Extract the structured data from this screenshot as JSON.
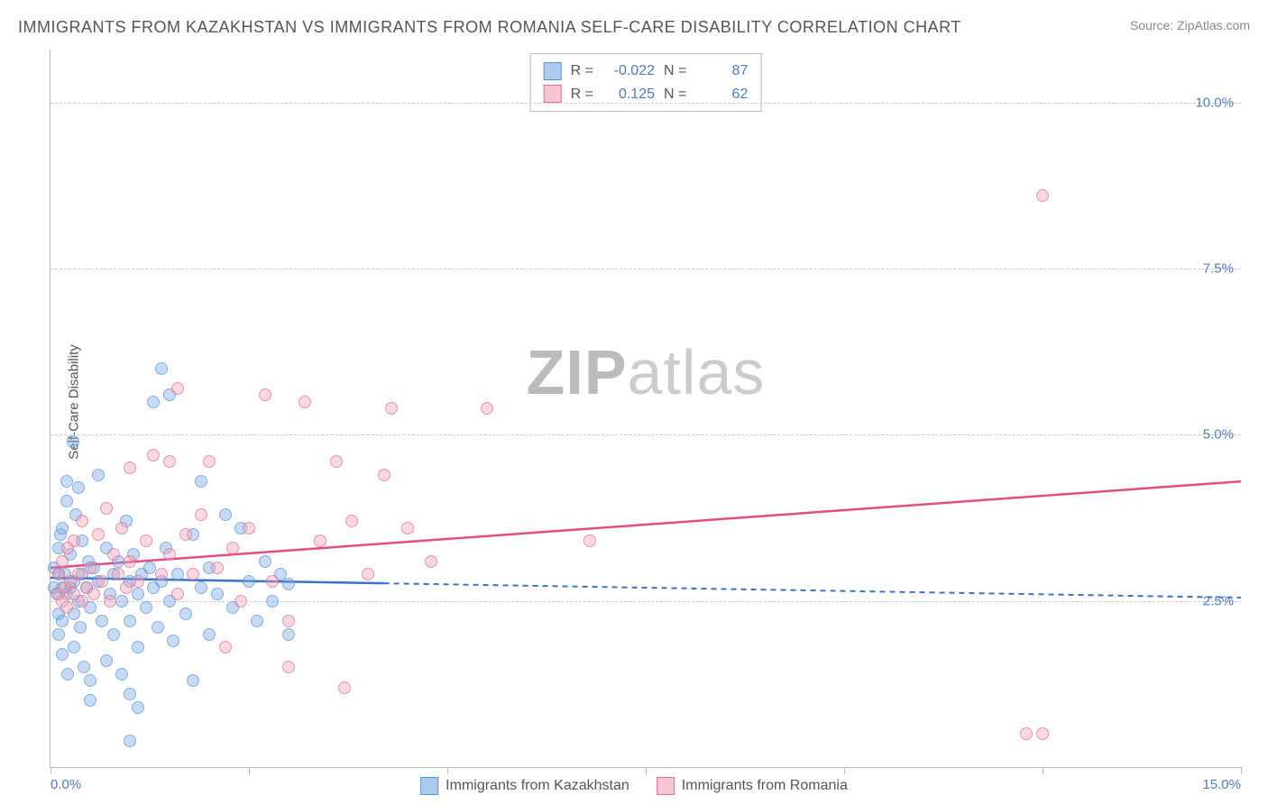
{
  "title": "IMMIGRANTS FROM KAZAKHSTAN VS IMMIGRANTS FROM ROMANIA SELF-CARE DISABILITY CORRELATION CHART",
  "source": "Source: ZipAtlas.com",
  "ylabel": "Self-Care Disability",
  "watermark_bold": "ZIP",
  "watermark_rest": "atlas",
  "chart": {
    "type": "scatter",
    "xlim": [
      0,
      15
    ],
    "ylim": [
      0,
      10.8
    ],
    "xticks": [
      0,
      2.5,
      5,
      7.5,
      10,
      12.5,
      15
    ],
    "xtick_labels": {
      "0": "0.0%",
      "15": "15.0%"
    },
    "yticks": [
      2.5,
      5.0,
      7.5,
      10.0
    ],
    "ytick_labels": [
      "2.5%",
      "5.0%",
      "7.5%",
      "10.0%"
    ],
    "grid_color": "#cccccc",
    "background_color": "#ffffff",
    "marker_size": 14,
    "series": [
      {
        "name": "Immigrants from Kazakhstan",
        "color_fill": "rgba(120,170,230,0.55)",
        "color_border": "#5a92d4",
        "r": -0.022,
        "n": 87,
        "trend": {
          "y_at_x0": 2.85,
          "y_at_xmax": 2.55,
          "color": "#3a73c8",
          "dash_after_x": 4.2
        },
        "points": [
          [
            0.05,
            2.7
          ],
          [
            0.05,
            3.0
          ],
          [
            0.08,
            2.6
          ],
          [
            0.1,
            2.9
          ],
          [
            0.1,
            3.3
          ],
          [
            0.1,
            2.3
          ],
          [
            0.1,
            2.0
          ],
          [
            0.12,
            3.5
          ],
          [
            0.15,
            2.7
          ],
          [
            0.15,
            3.6
          ],
          [
            0.15,
            2.2
          ],
          [
            0.15,
            1.7
          ],
          [
            0.18,
            2.9
          ],
          [
            0.2,
            2.6
          ],
          [
            0.2,
            4.0
          ],
          [
            0.2,
            4.3
          ],
          [
            0.22,
            1.4
          ],
          [
            0.25,
            2.7
          ],
          [
            0.25,
            3.2
          ],
          [
            0.28,
            4.9
          ],
          [
            0.3,
            2.8
          ],
          [
            0.3,
            2.3
          ],
          [
            0.3,
            1.8
          ],
          [
            0.32,
            3.8
          ],
          [
            0.35,
            2.5
          ],
          [
            0.35,
            4.2
          ],
          [
            0.38,
            2.1
          ],
          [
            0.4,
            2.9
          ],
          [
            0.4,
            3.4
          ],
          [
            0.42,
            1.5
          ],
          [
            0.45,
            2.7
          ],
          [
            0.48,
            3.1
          ],
          [
            0.5,
            2.4
          ],
          [
            0.5,
            1.3
          ],
          [
            0.5,
            1.0
          ],
          [
            0.55,
            3.0
          ],
          [
            0.6,
            4.4
          ],
          [
            0.6,
            2.8
          ],
          [
            0.65,
            2.2
          ],
          [
            0.7,
            3.3
          ],
          [
            0.7,
            1.6
          ],
          [
            0.75,
            2.6
          ],
          [
            0.8,
            2.9
          ],
          [
            0.8,
            2.0
          ],
          [
            0.85,
            3.1
          ],
          [
            0.9,
            2.5
          ],
          [
            0.9,
            1.4
          ],
          [
            0.95,
            3.7
          ],
          [
            1.0,
            2.8
          ],
          [
            1.0,
            2.2
          ],
          [
            1.0,
            1.1
          ],
          [
            1.05,
            3.2
          ],
          [
            1.1,
            2.6
          ],
          [
            1.1,
            1.8
          ],
          [
            1.1,
            0.9
          ],
          [
            1.15,
            2.9
          ],
          [
            1.2,
            2.4
          ],
          [
            1.25,
            3.0
          ],
          [
            1.3,
            5.5
          ],
          [
            1.3,
            2.7
          ],
          [
            1.35,
            2.1
          ],
          [
            1.4,
            2.8
          ],
          [
            1.4,
            6.0
          ],
          [
            1.45,
            3.3
          ],
          [
            1.5,
            5.6
          ],
          [
            1.5,
            2.5
          ],
          [
            1.55,
            1.9
          ],
          [
            1.6,
            2.9
          ],
          [
            1.7,
            2.3
          ],
          [
            1.8,
            3.5
          ],
          [
            1.8,
            1.3
          ],
          [
            1.9,
            2.7
          ],
          [
            1.9,
            4.3
          ],
          [
            2.0,
            3.0
          ],
          [
            2.0,
            2.0
          ],
          [
            2.1,
            2.6
          ],
          [
            2.2,
            3.8
          ],
          [
            2.3,
            2.4
          ],
          [
            2.4,
            3.6
          ],
          [
            2.5,
            2.8
          ],
          [
            2.6,
            2.2
          ],
          [
            2.7,
            3.1
          ],
          [
            2.8,
            2.5
          ],
          [
            2.9,
            2.9
          ],
          [
            3.0,
            2.0
          ],
          [
            3.0,
            2.75
          ],
          [
            1.0,
            0.4
          ]
        ]
      },
      {
        "name": "Immigrants from Romania",
        "color_fill": "rgba(240,160,180,0.55)",
        "color_border": "#e06e95",
        "r": 0.125,
        "n": 62,
        "trend": {
          "y_at_x0": 3.0,
          "y_at_xmax": 4.3,
          "color": "#e54d82",
          "dash_after_x": null
        },
        "points": [
          [
            0.1,
            2.6
          ],
          [
            0.1,
            2.9
          ],
          [
            0.15,
            2.5
          ],
          [
            0.15,
            3.1
          ],
          [
            0.18,
            2.7
          ],
          [
            0.2,
            2.4
          ],
          [
            0.22,
            3.3
          ],
          [
            0.25,
            2.8
          ],
          [
            0.3,
            2.6
          ],
          [
            0.3,
            3.4
          ],
          [
            0.35,
            2.9
          ],
          [
            0.4,
            2.5
          ],
          [
            0.4,
            3.7
          ],
          [
            0.45,
            2.7
          ],
          [
            0.5,
            3.0
          ],
          [
            0.55,
            2.6
          ],
          [
            0.6,
            3.5
          ],
          [
            0.65,
            2.8
          ],
          [
            0.7,
            3.9
          ],
          [
            0.75,
            2.5
          ],
          [
            0.8,
            3.2
          ],
          [
            0.85,
            2.9
          ],
          [
            0.9,
            3.6
          ],
          [
            0.95,
            2.7
          ],
          [
            1.0,
            3.1
          ],
          [
            1.0,
            4.5
          ],
          [
            1.1,
            2.8
          ],
          [
            1.2,
            3.4
          ],
          [
            1.3,
            4.7
          ],
          [
            1.4,
            2.9
          ],
          [
            1.5,
            4.6
          ],
          [
            1.5,
            3.2
          ],
          [
            1.6,
            5.7
          ],
          [
            1.6,
            2.6
          ],
          [
            1.7,
            3.5
          ],
          [
            1.8,
            2.9
          ],
          [
            1.9,
            3.8
          ],
          [
            2.0,
            4.6
          ],
          [
            2.1,
            3.0
          ],
          [
            2.2,
            1.8
          ],
          [
            2.3,
            3.3
          ],
          [
            2.4,
            2.5
          ],
          [
            2.5,
            3.6
          ],
          [
            2.7,
            5.6
          ],
          [
            2.8,
            2.8
          ],
          [
            3.0,
            2.2
          ],
          [
            3.0,
            1.5
          ],
          [
            3.2,
            5.5
          ],
          [
            3.4,
            3.4
          ],
          [
            3.6,
            4.6
          ],
          [
            3.7,
            1.2
          ],
          [
            3.8,
            3.7
          ],
          [
            4.0,
            2.9
          ],
          [
            4.2,
            4.4
          ],
          [
            4.3,
            5.4
          ],
          [
            4.5,
            3.6
          ],
          [
            4.8,
            3.1
          ],
          [
            5.5,
            5.4
          ],
          [
            6.8,
            3.4
          ],
          [
            12.5,
            8.6
          ],
          [
            12.3,
            0.5
          ],
          [
            12.5,
            0.5
          ]
        ]
      }
    ]
  },
  "legend_top": {
    "r_label": "R =",
    "n_label": "N ="
  },
  "legend_bottom": [
    {
      "swatch": "blue",
      "label": "Immigrants from Kazakhstan"
    },
    {
      "swatch": "pink",
      "label": "Immigrants from Romania"
    }
  ]
}
